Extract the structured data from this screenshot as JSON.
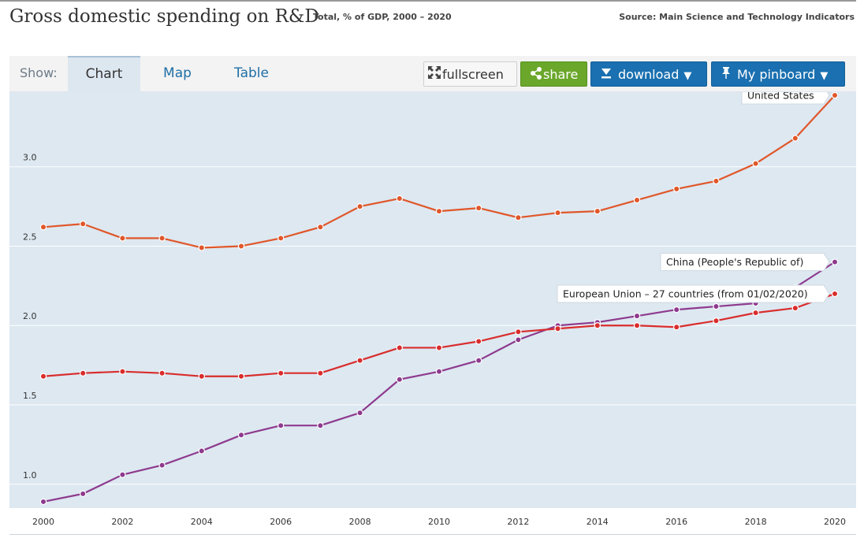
{
  "header": {
    "title": "Gross domestic spending on R&D",
    "subtitle": "Total, % of GDP, 2000 – 2020",
    "source": "Source: Main Science and Technology Indicators"
  },
  "toolbar": {
    "show_label": "Show:",
    "tabs": [
      {
        "label": "Chart",
        "active": true
      },
      {
        "label": "Map",
        "active": false
      },
      {
        "label": "Table",
        "active": false
      }
    ],
    "fullscreen_label": "fullscreen",
    "share_label": "share",
    "download_label": "download",
    "pinboard_label": "My pinboard"
  },
  "colors": {
    "us": "#e0572a",
    "china": "#8e3a8e",
    "eu": "#d92d2d",
    "plot_bg": "#dde8f1",
    "grid": "#ffffff"
  },
  "chart_data": {
    "type": "line",
    "title": "Gross domestic spending on R&D",
    "xlabel": "",
    "ylabel": "Total, % of GDP",
    "x": [
      2000,
      2001,
      2002,
      2003,
      2004,
      2005,
      2006,
      2007,
      2008,
      2009,
      2010,
      2011,
      2012,
      2013,
      2014,
      2015,
      2016,
      2017,
      2018,
      2019,
      2020
    ],
    "x_ticks": [
      "2000",
      "2002",
      "2004",
      "2006",
      "2008",
      "2010",
      "2012",
      "2014",
      "2016",
      "2018",
      "2020"
    ],
    "y_ticks": [
      "1.0",
      "1.5",
      "2.0",
      "2.5",
      "3.0"
    ],
    "ylim": [
      0.85,
      3.47
    ],
    "xlim": [
      2000,
      2020
    ],
    "grid": true,
    "series": [
      {
        "name": "United States",
        "key": "us",
        "label": "United States",
        "values": [
          2.62,
          2.64,
          2.55,
          2.55,
          2.49,
          2.5,
          2.55,
          2.62,
          2.75,
          2.8,
          2.72,
          2.74,
          2.68,
          2.71,
          2.72,
          2.79,
          2.86,
          2.91,
          3.02,
          3.18,
          3.45
        ]
      },
      {
        "name": "China (People's Republic of)",
        "key": "china",
        "label": "China (People's Republic of)",
        "values": [
          0.89,
          0.94,
          1.06,
          1.12,
          1.21,
          1.31,
          1.37,
          1.37,
          1.45,
          1.66,
          1.71,
          1.78,
          1.91,
          2.0,
          2.02,
          2.06,
          2.1,
          2.12,
          2.14,
          2.24,
          2.4
        ]
      },
      {
        "name": "European Union – 27 countries (from 01/02/2020)",
        "key": "eu",
        "label": "European Union – 27 countries (from 01/02/2020)",
        "values": [
          1.68,
          1.7,
          1.71,
          1.7,
          1.68,
          1.68,
          1.7,
          1.7,
          1.78,
          1.86,
          1.86,
          1.9,
          1.96,
          1.98,
          2.0,
          2.0,
          1.99,
          2.03,
          2.08,
          2.11,
          2.2
        ]
      }
    ]
  }
}
